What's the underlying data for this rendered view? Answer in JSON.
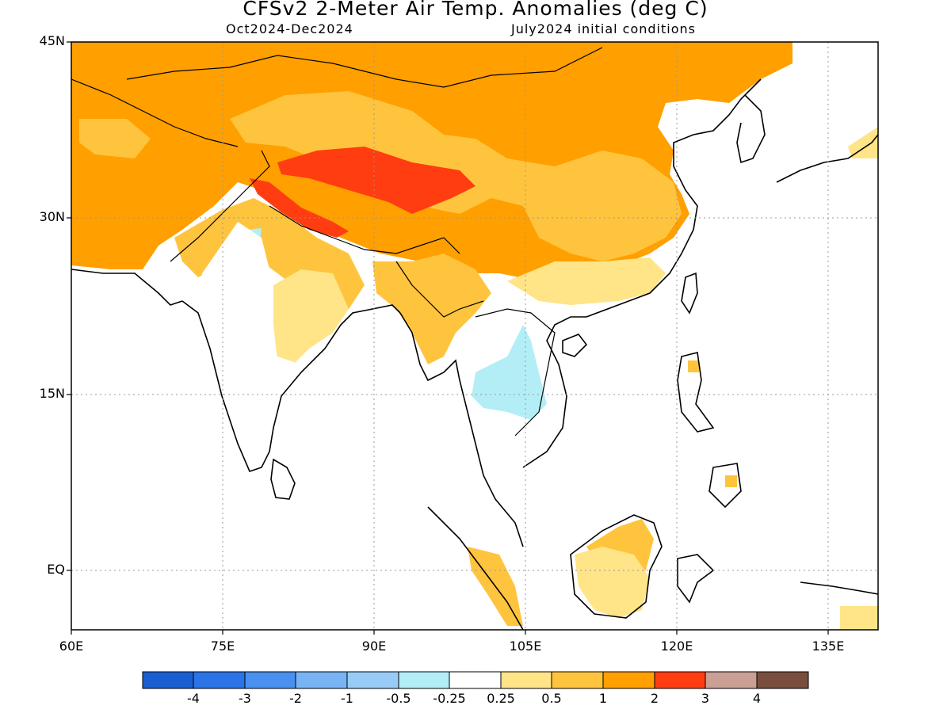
{
  "title": "CFSv2 2-Meter Air Temp. Anomalies (deg C)",
  "subtitle_left": "Oct2024-Dec2024",
  "subtitle_right": "July2024 initial conditions",
  "lat_labels": [
    "45N",
    "30N",
    "15N",
    "EQ"
  ],
  "lon_labels": [
    "60E",
    "75E",
    "90E",
    "105E",
    "120E",
    "135E"
  ],
  "colorbar": {
    "colors": [
      "#1a5fd1",
      "#2a74e8",
      "#4a90f0",
      "#78b4f4",
      "#98ccf7",
      "#b3eef7",
      "#ffffff",
      "#ffe488",
      "#ffc43e",
      "#ff9f00",
      "#ff3d10",
      "#c9a093",
      "#7a4e3e"
    ],
    "labels": [
      "-4",
      "-3",
      "-2",
      "-1",
      "-0.5",
      "-0.25",
      "0.25",
      "0.5",
      "1",
      "2",
      "3",
      "4"
    ]
  },
  "map_data": {
    "lon_range": [
      60,
      140
    ],
    "lat_range": [
      -5,
      45
    ],
    "lat_ticks": [
      45,
      30,
      15,
      0
    ],
    "lon_ticks": [
      60,
      75,
      90,
      105,
      120,
      135
    ],
    "grid": "dotted",
    "anomaly_regions": [
      {
        "level": "1 to 2",
        "area": "Central Asia, Mongolia, northern and central China"
      },
      {
        "level": "2 to 3",
        "area": "Tibetan Plateau and Himalaya"
      },
      {
        "level": "0.5 to 1",
        "area": "southern China, Myanmar, Borneo, Sumatra"
      },
      {
        "level": "0.25 to 0.5",
        "area": "eastern India, southern China coast"
      },
      {
        "level": "-0.5 to -0.25",
        "area": "Thailand / Laos, northwest India"
      }
    ]
  }
}
